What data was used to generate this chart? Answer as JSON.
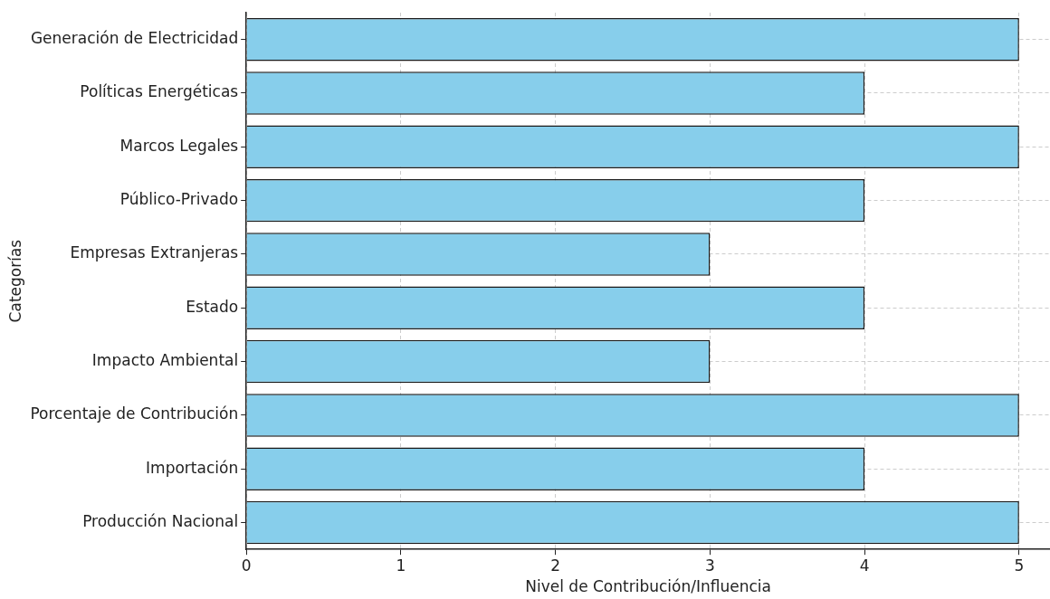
{
  "chart_data": {
    "type": "bar",
    "orientation": "horizontal",
    "xlabel": "Nivel de Contribución/Influencia",
    "ylabel": "Categorías",
    "categories": [
      "Generación de Electricidad",
      "Políticas Energéticas",
      "Marcos Legales",
      "Público-Privado",
      "Empresas Extranjeras",
      "Estado",
      "Impacto Ambiental",
      "Porcentaje de Contribución",
      "Importación",
      "Producción Nacional"
    ],
    "values": [
      5,
      4,
      5,
      4,
      3,
      4,
      3,
      5,
      4,
      5
    ],
    "color": "#87ceeb",
    "xlim": [
      0,
      5.2
    ],
    "xticks": [
      0,
      1,
      2,
      3,
      4,
      5
    ],
    "grid": true
  }
}
